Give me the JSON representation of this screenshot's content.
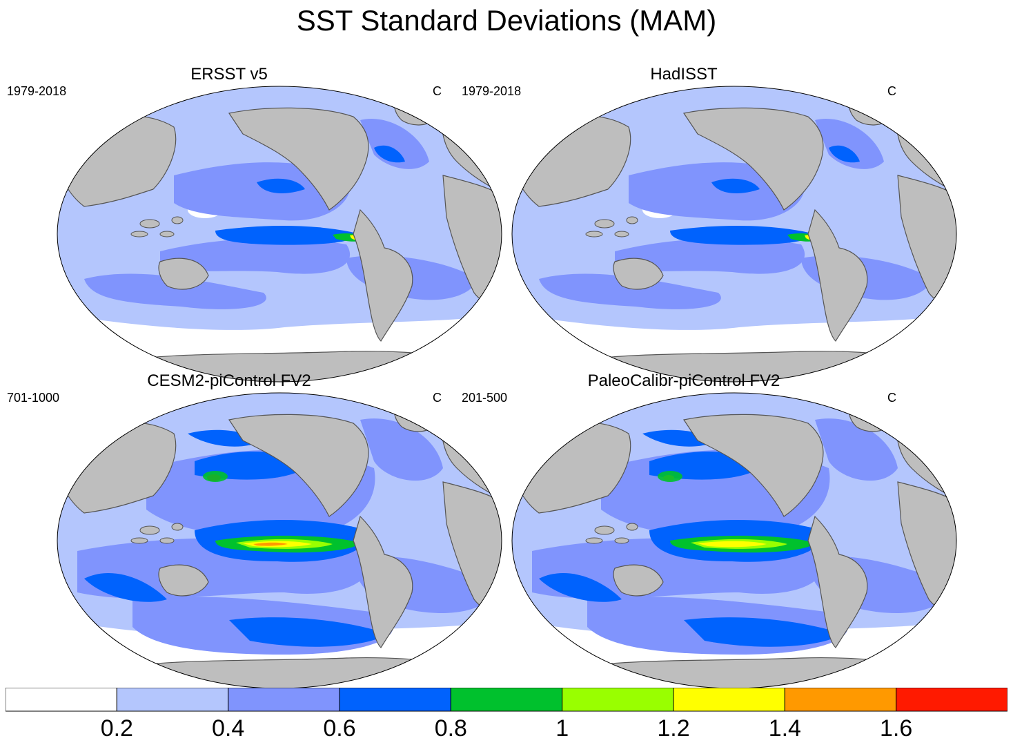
{
  "title": "SST Standard Deviations (MAM)",
  "panels": [
    {
      "title": "ERSST v5",
      "left_label": "1979-2018",
      "right_label": "C"
    },
    {
      "title": "HadISST",
      "left_label": "1979-2018",
      "right_label": "C"
    },
    {
      "title": "CESM2-piControl FV2",
      "left_label": "701-1000",
      "right_label": "C"
    },
    {
      "title": "PaleoCalibr-piControl FV2",
      "left_label": "201-500",
      "right_label": "C"
    }
  ],
  "colorbar": {
    "colors": [
      "#ffffff",
      "#b4c6fd",
      "#8094fd",
      "#0062fd",
      "#00c12d",
      "#99ff00",
      "#ffff00",
      "#ff9900",
      "#ff1a00"
    ],
    "labels": [
      "0.2",
      "0.4",
      "0.6",
      "0.8",
      "1",
      "1.2",
      "1.4",
      "1.6"
    ]
  },
  "map_colors": {
    "land": "#bebebe",
    "coast": "#555555"
  }
}
